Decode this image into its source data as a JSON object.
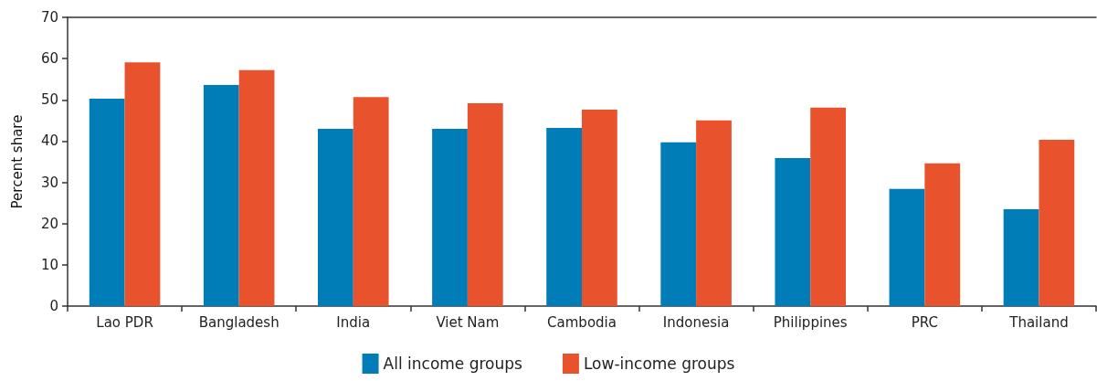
{
  "chart_data": {
    "type": "bar",
    "ylabel": "Percent share",
    "categories": [
      "Lao PDR",
      "Bangladesh",
      "India",
      "Viet Nam",
      "Cambodia",
      "Indonesia",
      "Philippines",
      "PRC",
      "Thailand"
    ],
    "series": [
      {
        "name": "All income groups",
        "color": "#007db7",
        "values": [
          50.3,
          53.6,
          43.0,
          43.0,
          43.2,
          39.7,
          35.9,
          28.4,
          23.5
        ]
      },
      {
        "name": "Low-income groups",
        "color": "#e8532d",
        "values": [
          59.1,
          57.2,
          50.7,
          49.2,
          47.6,
          45.0,
          48.1,
          34.6,
          40.3
        ]
      }
    ],
    "ylim": [
      0,
      70
    ],
    "yticks": [
      0,
      10,
      20,
      30,
      40,
      50,
      60,
      70
    ],
    "grid": false,
    "legend": "bottom"
  }
}
